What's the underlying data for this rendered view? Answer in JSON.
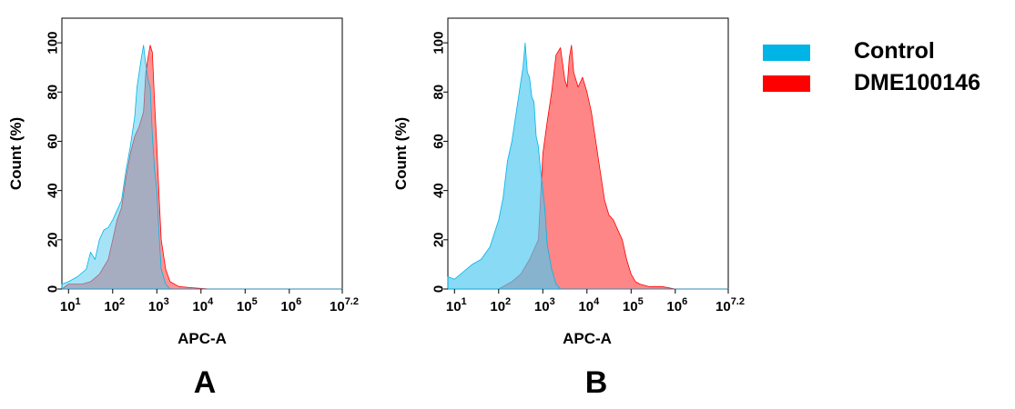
{
  "chart_data": [
    {
      "type": "area",
      "panel_label": "A",
      "xlabel": "APC-A",
      "ylabel": "Count  (%)",
      "x_scale": "log10",
      "xlim": [
        0.85,
        7.2
      ],
      "ylim": [
        0,
        110
      ],
      "x_ticks": [
        1,
        2,
        3,
        4,
        5,
        6,
        7.2
      ],
      "x_tick_labels": [
        {
          "base": "10",
          "exp": "1"
        },
        {
          "base": "10",
          "exp": "2"
        },
        {
          "base": "10",
          "exp": "3"
        },
        {
          "base": "10",
          "exp": "4"
        },
        {
          "base": "10",
          "exp": "5"
        },
        {
          "base": "10",
          "exp": "6"
        },
        {
          "base": "10",
          "exp": "7.2"
        }
      ],
      "y_ticks": [
        0,
        20,
        40,
        60,
        80,
        100
      ],
      "y_tick_labels": [
        "0",
        "20",
        "40",
        "60",
        "80",
        "100"
      ],
      "grid": false,
      "series": [
        {
          "name": "DME100146",
          "color": "#ff0000",
          "fill": "rgba(255,40,40,0.5)",
          "x": [
            0.85,
            1.0,
            1.3,
            1.5,
            1.7,
            1.9,
            2.0,
            2.1,
            2.2,
            2.3,
            2.4,
            2.5,
            2.6,
            2.7,
            2.75,
            2.8,
            2.85,
            2.9,
            2.95,
            3.0,
            3.05,
            3.1,
            3.2,
            3.3,
            3.5,
            3.8,
            4.2,
            7.2
          ],
          "y": [
            0,
            2,
            2,
            3,
            6,
            12,
            20,
            28,
            33,
            45,
            55,
            62,
            66,
            72,
            88,
            94,
            99,
            96,
            75,
            58,
            38,
            20,
            8,
            3,
            1,
            0.5,
            0,
            0
          ]
        },
        {
          "name": "Control",
          "color": "#00b4e6",
          "fill": "rgba(80,200,240,0.5)",
          "x": [
            0.85,
            1.0,
            1.2,
            1.4,
            1.5,
            1.6,
            1.7,
            1.8,
            1.9,
            2.0,
            2.1,
            2.2,
            2.3,
            2.4,
            2.5,
            2.55,
            2.6,
            2.65,
            2.7,
            2.75,
            2.8,
            2.85,
            2.9,
            2.95,
            3.0,
            3.05,
            3.1,
            3.2,
            3.3,
            7.2
          ],
          "y": [
            2,
            3,
            5,
            8,
            15,
            12,
            20,
            24,
            25,
            28,
            32,
            36,
            48,
            58,
            70,
            82,
            88,
            94,
            99,
            91,
            85,
            82,
            62,
            48,
            40,
            22,
            8,
            2,
            0,
            0
          ]
        }
      ]
    },
    {
      "type": "area",
      "panel_label": "B",
      "xlabel": "APC-A",
      "ylabel": "Count  (%)",
      "x_scale": "log10",
      "xlim": [
        0.85,
        7.2
      ],
      "ylim": [
        0,
        110
      ],
      "x_ticks": [
        1,
        2,
        3,
        4,
        5,
        6,
        7.2
      ],
      "x_tick_labels": [
        {
          "base": "10",
          "exp": "1"
        },
        {
          "base": "10",
          "exp": "2"
        },
        {
          "base": "10",
          "exp": "3"
        },
        {
          "base": "10",
          "exp": "4"
        },
        {
          "base": "10",
          "exp": "5"
        },
        {
          "base": "10",
          "exp": "6"
        },
        {
          "base": "10",
          "exp": "7.2"
        }
      ],
      "y_ticks": [
        0,
        20,
        40,
        60,
        80,
        100
      ],
      "y_tick_labels": [
        "0",
        "20",
        "40",
        "60",
        "80",
        "100"
      ],
      "grid": false,
      "series": [
        {
          "name": "DME100146",
          "color": "#ff0000",
          "fill": "rgba(255,60,60,0.62)",
          "x": [
            0.85,
            2.0,
            2.3,
            2.5,
            2.7,
            2.9,
            3.0,
            3.1,
            3.2,
            3.3,
            3.4,
            3.5,
            3.55,
            3.6,
            3.65,
            3.7,
            3.8,
            3.9,
            4.0,
            4.1,
            4.2,
            4.3,
            4.4,
            4.5,
            4.6,
            4.7,
            4.8,
            4.9,
            5.0,
            5.1,
            5.2,
            5.4,
            5.7,
            6.0,
            7.2
          ],
          "y": [
            0,
            0,
            3,
            6,
            12,
            20,
            55,
            68,
            80,
            95,
            98,
            85,
            82,
            94,
            99,
            88,
            82,
            86,
            80,
            72,
            60,
            48,
            36,
            30,
            28,
            24,
            20,
            12,
            6,
            3,
            2,
            1,
            1,
            0,
            0
          ]
        },
        {
          "name": "Control",
          "color": "#00b4e6",
          "fill": "rgba(80,200,240,0.68)",
          "x": [
            0.85,
            1.0,
            1.2,
            1.4,
            1.6,
            1.8,
            2.0,
            2.1,
            2.2,
            2.3,
            2.4,
            2.5,
            2.55,
            2.6,
            2.65,
            2.7,
            2.75,
            2.8,
            2.85,
            2.9,
            2.95,
            3.0,
            3.05,
            3.1,
            3.2,
            3.3,
            3.4,
            7.2
          ],
          "y": [
            5,
            4,
            7,
            10,
            12,
            17,
            28,
            37,
            52,
            60,
            72,
            84,
            90,
            100,
            88,
            86,
            78,
            76,
            62,
            58,
            48,
            40,
            32,
            18,
            8,
            2,
            0,
            0
          ]
        }
      ]
    }
  ],
  "legend": {
    "position": "right",
    "items": [
      {
        "label": "Control",
        "color": "#00b4e6"
      },
      {
        "label": "DME100146",
        "color": "#ff0000"
      }
    ]
  },
  "panel_letters": [
    "A",
    "B"
  ]
}
